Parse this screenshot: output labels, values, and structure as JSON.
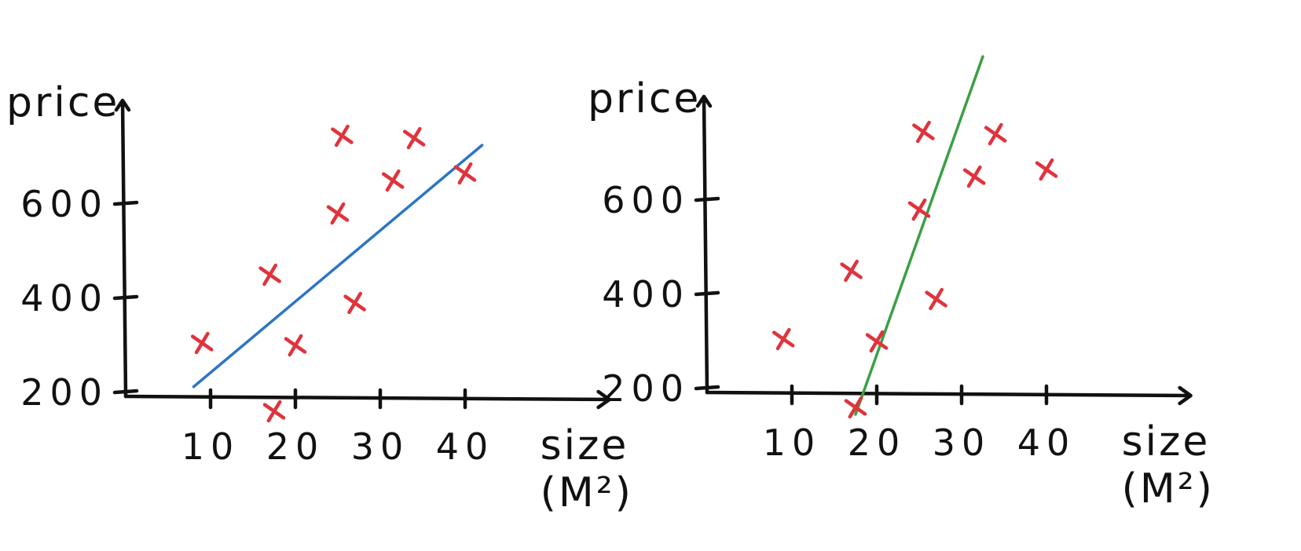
{
  "colors": {
    "axis": "#111111",
    "points": "#e0333c",
    "fit_left": "#2b76c4",
    "fit_right": "#3aa046"
  },
  "chart_data": [
    {
      "type": "scatter",
      "title": "",
      "xlabel": "size",
      "xlabel_unit": "(M²)",
      "ylabel": "price",
      "x_ticks": [
        10,
        20,
        30,
        40
      ],
      "y_ticks": [
        200,
        400,
        600
      ],
      "xlim": [
        0,
        57
      ],
      "ylim": [
        25,
        820
      ],
      "grid": false,
      "points": [
        {
          "x": 9,
          "y": 305
        },
        {
          "x": 17,
          "y": 450
        },
        {
          "x": 17.5,
          "y": 160
        },
        {
          "x": 20,
          "y": 300
        },
        {
          "x": 25,
          "y": 580
        },
        {
          "x": 25.5,
          "y": 745
        },
        {
          "x": 27,
          "y": 390
        },
        {
          "x": 31.5,
          "y": 650
        },
        {
          "x": 34,
          "y": 740
        },
        {
          "x": 40,
          "y": 665
        }
      ],
      "fit_line": {
        "x": [
          8,
          42
        ],
        "y": [
          212,
          725
        ]
      }
    },
    {
      "type": "scatter",
      "title": "",
      "xlabel": "size",
      "xlabel_unit": "(M²)",
      "ylabel": "price",
      "x_ticks": [
        10,
        20,
        30,
        40
      ],
      "y_ticks": [
        200,
        400,
        600
      ],
      "xlim": [
        0,
        57
      ],
      "ylim": [
        25,
        820
      ],
      "grid": false,
      "points": [
        {
          "x": 9,
          "y": 305
        },
        {
          "x": 17,
          "y": 450
        },
        {
          "x": 17.5,
          "y": 160
        },
        {
          "x": 20,
          "y": 300
        },
        {
          "x": 25,
          "y": 580
        },
        {
          "x": 25.5,
          "y": 745
        },
        {
          "x": 27,
          "y": 390
        },
        {
          "x": 31.5,
          "y": 650
        },
        {
          "x": 34,
          "y": 740
        },
        {
          "x": 40,
          "y": 665
        }
      ],
      "fit_line": {
        "x": [
          17.5,
          32.5
        ],
        "y": [
          145,
          905
        ]
      }
    }
  ]
}
